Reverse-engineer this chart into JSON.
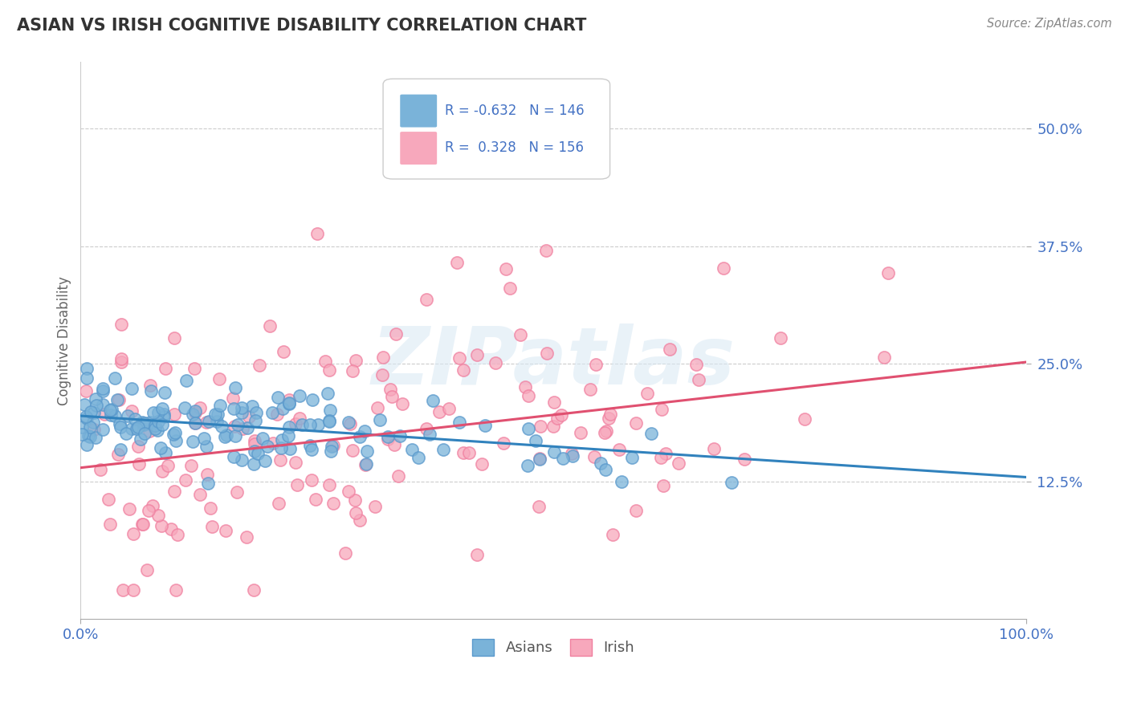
{
  "title": "ASIAN VS IRISH COGNITIVE DISABILITY CORRELATION CHART",
  "source": "Source: ZipAtlas.com",
  "ylabel": "Cognitive Disability",
  "xlim": [
    0,
    1.0
  ],
  "ylim": [
    -0.02,
    0.57
  ],
  "yticks": [
    0.125,
    0.25,
    0.375,
    0.5
  ],
  "ytick_labels": [
    "12.5%",
    "25.0%",
    "37.5%",
    "50.0%"
  ],
  "xtick_labels": [
    "0.0%",
    "100.0%"
  ],
  "asian_color": "#7ab3d9",
  "irish_color": "#f7a8bc",
  "asian_edge_color": "#5a99cc",
  "irish_edge_color": "#f080a0",
  "asian_line_color": "#3182bd",
  "irish_line_color": "#e05070",
  "asian_R": -0.632,
  "asian_N": 146,
  "irish_R": 0.328,
  "irish_N": 156,
  "watermark": "ZIPatlas",
  "background_color": "#ffffff",
  "grid_color": "#cccccc",
  "title_color": "#333333",
  "tick_label_color": "#4472c4",
  "legend_color": "#4472c4",
  "source_color": "#888888"
}
